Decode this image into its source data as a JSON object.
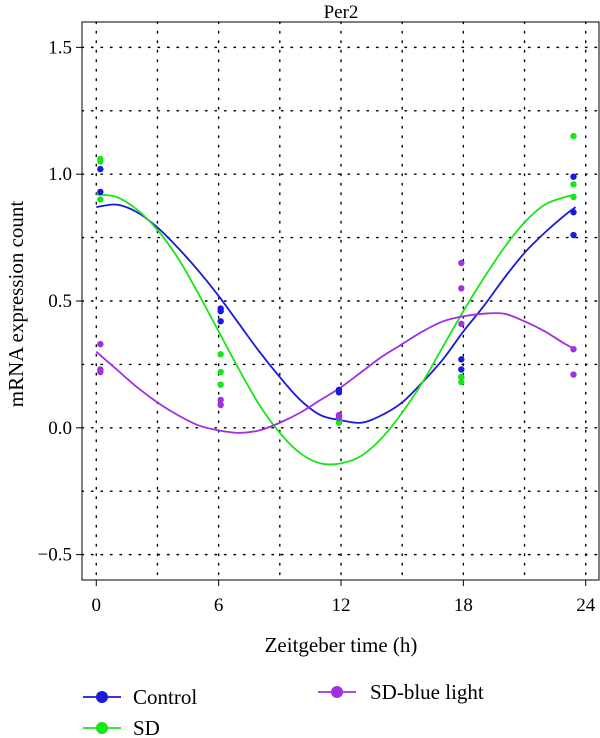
{
  "chart_data": {
    "type": "scatter",
    "title": "Per2",
    "xlabel": "Zeitgeber time (h)",
    "ylabel": "mRNA expression count",
    "xlim": [
      -0.7,
      24.7
    ],
    "ylim": [
      -0.6,
      1.6
    ],
    "xticks": [
      0,
      6,
      12,
      18,
      24
    ],
    "yticks": [
      -0.5,
      0.0,
      0.5,
      1.0,
      1.5
    ],
    "xtick_labels": [
      "0",
      "6",
      "12",
      "18",
      "24"
    ],
    "ytick_labels": [
      "−0.5",
      "0.0",
      "0.5",
      "1.0",
      "1.5"
    ],
    "grid": true,
    "legend_position": "bottom",
    "series": [
      {
        "name": "Control",
        "color": "#1a1adb",
        "points": [
          {
            "x": 0.2,
            "y": 1.02
          },
          {
            "x": 0.2,
            "y": 0.93
          },
          {
            "x": 6.1,
            "y": 0.47
          },
          {
            "x": 6.1,
            "y": 0.46
          },
          {
            "x": 6.1,
            "y": 0.42
          },
          {
            "x": 11.9,
            "y": 0.15
          },
          {
            "x": 11.9,
            "y": 0.14
          },
          {
            "x": 17.9,
            "y": 0.27
          },
          {
            "x": 17.9,
            "y": 0.23
          },
          {
            "x": 17.9,
            "y": 0.2
          },
          {
            "x": 23.4,
            "y": 0.99
          },
          {
            "x": 23.4,
            "y": 0.85
          },
          {
            "x": 23.4,
            "y": 0.76
          }
        ],
        "fit": [
          {
            "x": 0.0,
            "y": 0.87
          },
          {
            "x": 1.0,
            "y": 0.88
          },
          {
            "x": 2.0,
            "y": 0.85
          },
          {
            "x": 3.0,
            "y": 0.79
          },
          {
            "x": 4.0,
            "y": 0.71
          },
          {
            "x": 5.0,
            "y": 0.62
          },
          {
            "x": 6.0,
            "y": 0.52
          },
          {
            "x": 7.0,
            "y": 0.41
          },
          {
            "x": 8.0,
            "y": 0.3
          },
          {
            "x": 9.0,
            "y": 0.2
          },
          {
            "x": 10.0,
            "y": 0.11
          },
          {
            "x": 11.0,
            "y": 0.05
          },
          {
            "x": 12.0,
            "y": 0.03
          },
          {
            "x": 13.0,
            "y": 0.02
          },
          {
            "x": 14.0,
            "y": 0.05
          },
          {
            "x": 15.0,
            "y": 0.1
          },
          {
            "x": 16.0,
            "y": 0.18
          },
          {
            "x": 17.0,
            "y": 0.27
          },
          {
            "x": 18.0,
            "y": 0.38
          },
          {
            "x": 19.0,
            "y": 0.48
          },
          {
            "x": 20.0,
            "y": 0.59
          },
          {
            "x": 21.0,
            "y": 0.69
          },
          {
            "x": 22.0,
            "y": 0.77
          },
          {
            "x": 23.0,
            "y": 0.84
          },
          {
            "x": 23.5,
            "y": 0.87
          }
        ]
      },
      {
        "name": "SD",
        "color": "#19e619",
        "points": [
          {
            "x": 0.2,
            "y": 1.06
          },
          {
            "x": 0.2,
            "y": 1.05
          },
          {
            "x": 0.2,
            "y": 0.9
          },
          {
            "x": 6.1,
            "y": 0.29
          },
          {
            "x": 6.1,
            "y": 0.22
          },
          {
            "x": 6.1,
            "y": 0.17
          },
          {
            "x": 11.9,
            "y": 0.03
          },
          {
            "x": 11.9,
            "y": 0.02
          },
          {
            "x": 17.9,
            "y": 0.2
          },
          {
            "x": 17.9,
            "y": 0.18
          },
          {
            "x": 23.4,
            "y": 1.15
          },
          {
            "x": 23.4,
            "y": 0.96
          },
          {
            "x": 23.4,
            "y": 0.91
          }
        ],
        "fit": [
          {
            "x": 0.0,
            "y": 0.92
          },
          {
            "x": 1.0,
            "y": 0.91
          },
          {
            "x": 2.0,
            "y": 0.86
          },
          {
            "x": 3.0,
            "y": 0.78
          },
          {
            "x": 4.0,
            "y": 0.67
          },
          {
            "x": 5.0,
            "y": 0.53
          },
          {
            "x": 6.0,
            "y": 0.38
          },
          {
            "x": 7.0,
            "y": 0.23
          },
          {
            "x": 8.0,
            "y": 0.09
          },
          {
            "x": 9.0,
            "y": -0.02
          },
          {
            "x": 10.0,
            "y": -0.1
          },
          {
            "x": 11.0,
            "y": -0.14
          },
          {
            "x": 12.0,
            "y": -0.14
          },
          {
            "x": 13.0,
            "y": -0.11
          },
          {
            "x": 14.0,
            "y": -0.04
          },
          {
            "x": 15.0,
            "y": 0.06
          },
          {
            "x": 16.0,
            "y": 0.18
          },
          {
            "x": 17.0,
            "y": 0.32
          },
          {
            "x": 18.0,
            "y": 0.46
          },
          {
            "x": 19.0,
            "y": 0.59
          },
          {
            "x": 20.0,
            "y": 0.71
          },
          {
            "x": 21.0,
            "y": 0.81
          },
          {
            "x": 22.0,
            "y": 0.88
          },
          {
            "x": 23.0,
            "y": 0.91
          },
          {
            "x": 23.5,
            "y": 0.92
          }
        ]
      },
      {
        "name": "SD-blue light",
        "color": "#a030e0",
        "points": [
          {
            "x": 0.2,
            "y": 0.33
          },
          {
            "x": 0.2,
            "y": 0.23
          },
          {
            "x": 0.2,
            "y": 0.22
          },
          {
            "x": 6.1,
            "y": 0.11
          },
          {
            "x": 6.1,
            "y": 0.09
          },
          {
            "x": 11.9,
            "y": 0.05
          },
          {
            "x": 11.9,
            "y": 0.04
          },
          {
            "x": 17.9,
            "y": 0.65
          },
          {
            "x": 17.9,
            "y": 0.55
          },
          {
            "x": 17.9,
            "y": 0.41
          },
          {
            "x": 23.4,
            "y": 0.31
          },
          {
            "x": 23.4,
            "y": 0.21
          }
        ],
        "fit": [
          {
            "x": 0.0,
            "y": 0.3
          },
          {
            "x": 1.0,
            "y": 0.23
          },
          {
            "x": 2.0,
            "y": 0.16
          },
          {
            "x": 3.0,
            "y": 0.1
          },
          {
            "x": 4.0,
            "y": 0.05
          },
          {
            "x": 5.0,
            "y": 0.01
          },
          {
            "x": 6.0,
            "y": -0.01
          },
          {
            "x": 7.0,
            "y": -0.02
          },
          {
            "x": 8.0,
            "y": -0.01
          },
          {
            "x": 9.0,
            "y": 0.02
          },
          {
            "x": 10.0,
            "y": 0.06
          },
          {
            "x": 11.0,
            "y": 0.11
          },
          {
            "x": 12.0,
            "y": 0.16
          },
          {
            "x": 13.0,
            "y": 0.22
          },
          {
            "x": 14.0,
            "y": 0.28
          },
          {
            "x": 15.0,
            "y": 0.33
          },
          {
            "x": 16.0,
            "y": 0.38
          },
          {
            "x": 17.0,
            "y": 0.42
          },
          {
            "x": 18.0,
            "y": 0.44
          },
          {
            "x": 19.0,
            "y": 0.45
          },
          {
            "x": 20.0,
            "y": 0.45
          },
          {
            "x": 21.0,
            "y": 0.42
          },
          {
            "x": 22.0,
            "y": 0.38
          },
          {
            "x": 23.0,
            "y": 0.33
          },
          {
            "x": 23.5,
            "y": 0.31
          }
        ]
      }
    ]
  }
}
